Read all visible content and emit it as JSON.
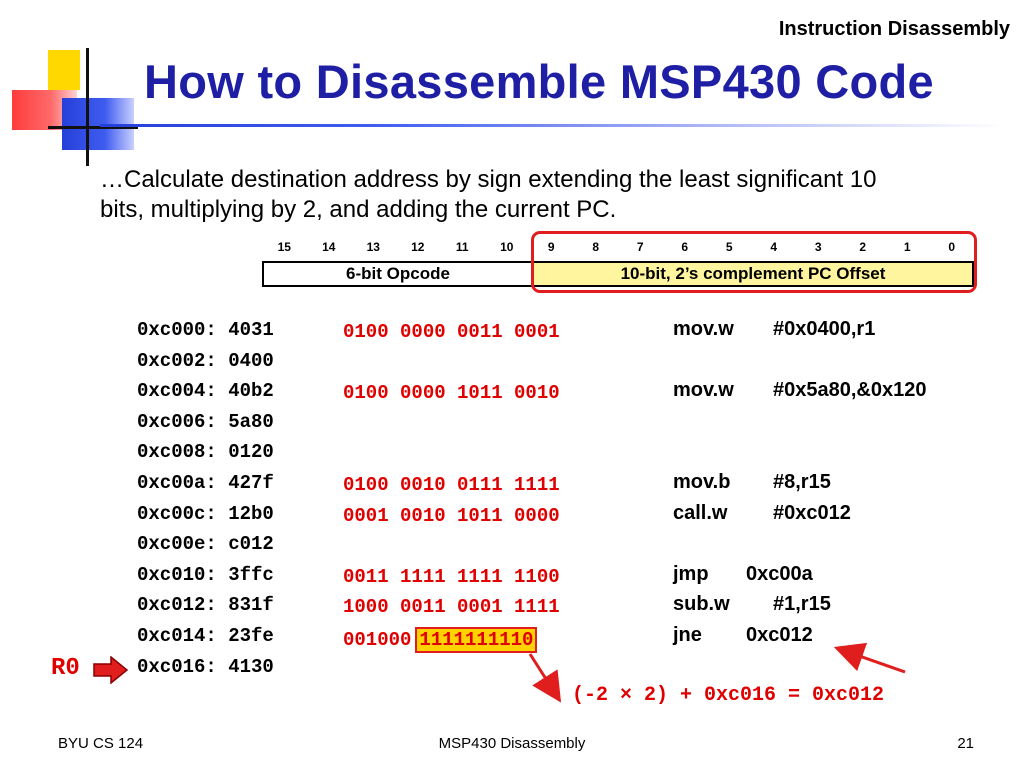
{
  "section_title": "Instruction Disassembly",
  "title": "How to Disassemble MSP430 Code",
  "description": "…Calculate destination address by sign extending the least significant 10 bits, multiplying by 2, and adding the current PC.",
  "bit_diagram": {
    "bit_numbers": [
      "15",
      "14",
      "13",
      "12",
      "11",
      "10",
      "9",
      "8",
      "7",
      "6",
      "5",
      "4",
      "3",
      "2",
      "1",
      "0"
    ],
    "opcode_label": "6-bit Opcode",
    "offset_label": "10-bit, 2’s complement PC Offset"
  },
  "rows": [
    {
      "addr": "0xc000: 4031",
      "binary": "0100 0000 0011 0001",
      "mnemonic": "mov.w",
      "operands": "#0x0400,r1"
    },
    {
      "addr": "0xc002: 0400",
      "binary": "",
      "mnemonic": "",
      "operands": ""
    },
    {
      "addr": "0xc004: 40b2",
      "binary": "0100 0000 1011 0010",
      "mnemonic": "mov.w",
      "operands": "#0x5a80,&0x120"
    },
    {
      "addr": "0xc006: 5a80",
      "binary": "",
      "mnemonic": "",
      "operands": ""
    },
    {
      "addr": "0xc008: 0120",
      "binary": "",
      "mnemonic": "",
      "operands": ""
    },
    {
      "addr": "0xc00a: 427f",
      "binary": "0100 0010 0111 1111",
      "mnemonic": "mov.b",
      "operands": "#8,r15"
    },
    {
      "addr": "0xc00c: 12b0",
      "binary": "0001 0010 1011 0000",
      "mnemonic": "call.w",
      "operands": "#0xc012"
    },
    {
      "addr": "0xc00e: c012",
      "binary": "",
      "mnemonic": "",
      "operands": ""
    },
    {
      "addr": "0xc010: 3ffc",
      "binary": "0011 1111 1111 1100",
      "mnemonic": "jmp",
      "operands": "0xc00a"
    },
    {
      "addr": "0xc012: 831f",
      "binary": "1000 0011 0001 1111",
      "mnemonic": "sub.w",
      "operands": "#1,r15"
    },
    {
      "addr": "0xc014: 23fe",
      "binary": "",
      "mnemonic": "jne",
      "operands": "0xc012"
    },
    {
      "addr": "0xc016: 4130",
      "binary": "",
      "mnemonic": "",
      "operands": ""
    }
  ],
  "jne_binary": {
    "opcode_bits": "001000",
    "offset_bits": "1111111110"
  },
  "r0_label": "R0",
  "calculation": "(-2 × 2) + 0xc016 = 0xc012",
  "footer": {
    "left": "BYU CS 124",
    "center": "MSP430 Disassembly",
    "right": "21"
  },
  "colors": {
    "title": "#1f1fa6",
    "highlight_red": "#e00000",
    "offset_fill": "#fff59e",
    "bits_highlight": "#ffd200"
  }
}
